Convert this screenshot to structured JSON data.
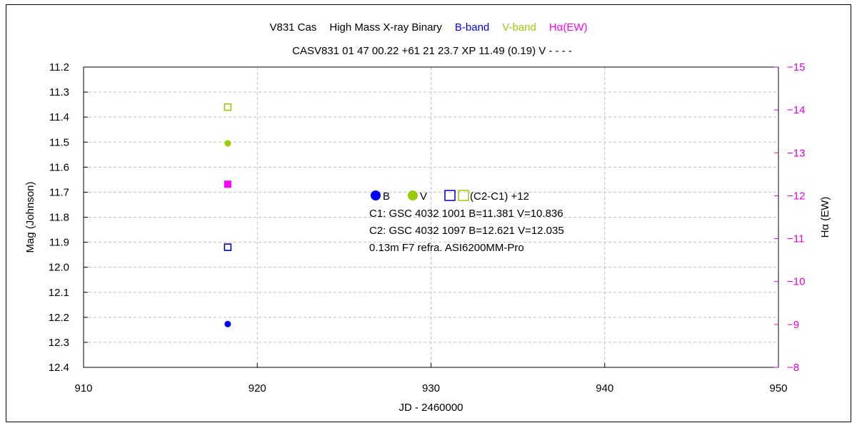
{
  "chart_data": {
    "type": "scatter",
    "title_parts": [
      {
        "text": "V831 Cas",
        "color": "#000000"
      },
      {
        "text": "High Mass X-ray Binary",
        "color": "#000000"
      },
      {
        "text": "B-band",
        "color": "#0000ff"
      },
      {
        "text": "V-band",
        "color": "#99cc00"
      },
      {
        "text": "Hα(EW)",
        "color": "#ff00ff"
      }
    ],
    "subtitle": "CASV831 01 47 00.22 +61 21 23.7 XP 11.49 (0.19) V - - - -",
    "xlabel": "JD - 2460000",
    "ylabel": "Mag (Johnson)",
    "y2label": "Hα (EW)",
    "xlim": [
      910,
      950
    ],
    "ylim": [
      12.4,
      11.2
    ],
    "y2lim": [
      -8,
      -15
    ],
    "x_ticks": [
      "910",
      "920",
      "930",
      "940",
      "950"
    ],
    "y_ticks": [
      "11.2",
      "11.3",
      "11.4",
      "11.5",
      "11.6",
      "11.7",
      "11.8",
      "11.9",
      "12.0",
      "12.1",
      "12.2",
      "12.3",
      "12.4"
    ],
    "y2_ticks": [
      "-15",
      "-14",
      "-13",
      "-12",
      "-11",
      "-10",
      "-9",
      "-8"
    ],
    "grid": true,
    "series": [
      {
        "name": "B",
        "marker": "filled-circle",
        "color": "#0000ff",
        "axis": "left",
        "points": [
          {
            "x": 918.3,
            "y": 12.227
          }
        ]
      },
      {
        "name": "V",
        "marker": "filled-circle",
        "color": "#99cc00",
        "axis": "left",
        "points": [
          {
            "x": 918.3,
            "y": 11.505
          }
        ]
      },
      {
        "name": "(C2-C1)+12 B",
        "marker": "open-square",
        "color": "#0000cc",
        "axis": "left",
        "points": [
          {
            "x": 918.3,
            "y": 11.92
          }
        ]
      },
      {
        "name": "(C2-C1)+12 V",
        "marker": "open-square",
        "color": "#99cc00",
        "axis": "left",
        "points": [
          {
            "x": 918.3,
            "y": 11.36
          }
        ]
      },
      {
        "name": "Hα(EW)",
        "marker": "filled-square",
        "color": "#ff00ff",
        "axis": "right",
        "points": [
          {
            "x": 918.3,
            "y": -12.27
          }
        ]
      }
    ],
    "legend": {
      "items": [
        {
          "label": "B",
          "marker": "filled-circle",
          "color": "#0000ff"
        },
        {
          "label": "V",
          "marker": "filled-circle",
          "color": "#99cc00"
        },
        {
          "label": "(C2-C1) +12",
          "marker": "open-squares",
          "colors": [
            "#0000cc",
            "#99cc00"
          ]
        }
      ],
      "lines": [
        "C1: GSC 4032 1001  B=11.381  V=10.836",
        "C2: GSC 4032 1097  B=12.621  V=12.035",
        "0.13m  F7  refra.   ASI6200MM-Pro"
      ]
    }
  }
}
